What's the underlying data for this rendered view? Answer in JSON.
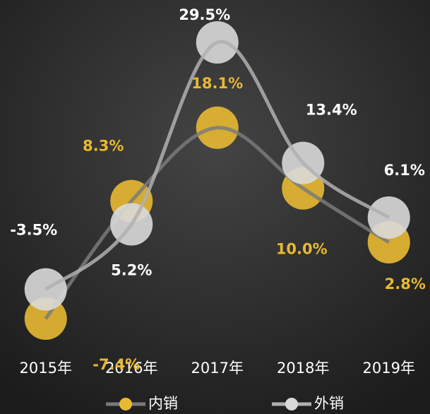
{
  "chart_data": {
    "type": "line",
    "categories": [
      "2015年",
      "2016年",
      "2017年",
      "2018年",
      "2019年"
    ],
    "series": [
      {
        "name": "内销",
        "color": "#e8b932",
        "values": [
          -7.4,
          8.3,
          18.1,
          10.0,
          2.8
        ],
        "value_labels": [
          "-7.4%",
          "8.3%",
          "18.1%",
          "10.0%",
          "2.8%"
        ]
      },
      {
        "name": "外销",
        "color": "#d9d9d9",
        "values": [
          -3.5,
          5.2,
          29.5,
          13.4,
          6.1
        ],
        "value_labels": [
          "-3.5%",
          "5.2%",
          "29.5%",
          "13.4%",
          "6.1%"
        ]
      }
    ],
    "smooth": true
  }
}
